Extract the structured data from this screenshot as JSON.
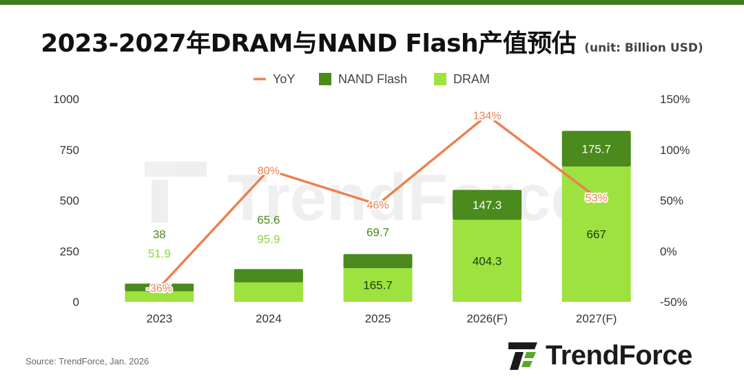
{
  "header": {
    "title": "2023-2027年DRAM与NAND Flash产值预估",
    "unit": "(unit: Billion USD)"
  },
  "source": "Source: TrendForce, Jan. 2026",
  "brand": {
    "name": "TrendForce",
    "icon": "trendforce-logo-icon"
  },
  "colors": {
    "accent": "#3e7b20",
    "nand": "#4b8a1c",
    "dram": "#9ee23f",
    "yoy": "#ec8050"
  },
  "chart_data": {
    "type": "bar",
    "stacked": true,
    "categories": [
      "2023",
      "2024",
      "2025",
      "2026(F)",
      "2027(F)"
    ],
    "series": [
      {
        "name": "DRAM",
        "values": [
          51.9,
          95.9,
          165.7,
          404.3,
          667
        ],
        "color": "#9ee23f"
      },
      {
        "name": "NAND Flash",
        "values": [
          38,
          65.6,
          69.7,
          147.3,
          175.7
        ],
        "color": "#4b8a1c"
      }
    ],
    "line_series": [
      {
        "name": "YoY",
        "axis": "right",
        "values": [
          -36,
          80,
          46,
          134,
          53
        ],
        "labels": [
          "-36%",
          "80%",
          "46%",
          "134%",
          "53%"
        ],
        "color": "#ec8050"
      }
    ],
    "ylim": [
      0,
      1000
    ],
    "y_ticks": [
      "0",
      "250",
      "500",
      "750",
      "1000"
    ],
    "y2lim": [
      -50,
      150
    ],
    "y2_ticks": [
      "-50%",
      "0%",
      "50%",
      "100%",
      "150%"
    ],
    "legend": [
      "YoY",
      "NAND Flash",
      "DRAM"
    ],
    "legend_position": "top-center",
    "grid": false,
    "watermark": "TrendForce"
  }
}
